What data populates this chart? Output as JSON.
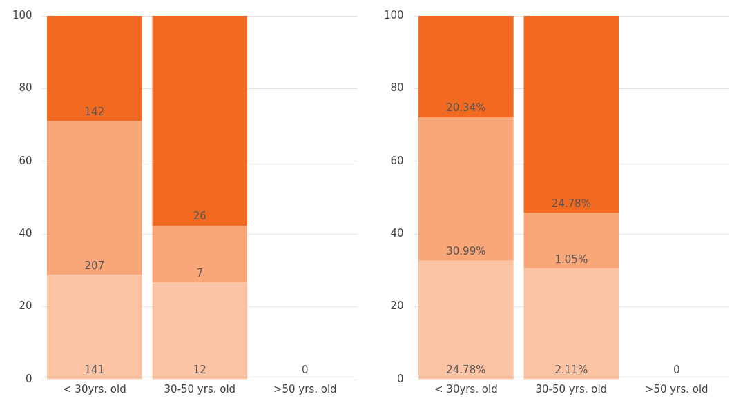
{
  "chart_data": [
    {
      "type": "bar",
      "stacked": true,
      "categories": [
        "< 30yrs. old",
        "30-50 yrs. old",
        ">50 yrs. old"
      ],
      "ylim": [
        0,
        100
      ],
      "yticks": [
        0,
        20,
        40,
        60,
        80,
        100
      ],
      "grid": "y",
      "series": [
        {
          "color": "#fbc3a3",
          "values": [
            28.8,
            26.7,
            0
          ]
        },
        {
          "color": "#f9a678",
          "values": [
            42.2,
            15.6,
            0
          ]
        },
        {
          "color": "#f26a22",
          "values": [
            29.0,
            57.7,
            0
          ]
        }
      ],
      "annotations": [
        {
          "text": "141",
          "x": "< 30yrs. old",
          "y": 0
        },
        {
          "text": "207",
          "x": "< 30yrs. old",
          "y": 28.8
        },
        {
          "text": "142",
          "x": "< 30yrs. old",
          "y": 71.0
        },
        {
          "text": "12",
          "x": "30-50 yrs. old",
          "y": 0
        },
        {
          "text": "7",
          "x": "30-50 yrs. old",
          "y": 26.7
        },
        {
          "text": "26",
          "x": "30-50 yrs. old",
          "y": 42.3
        },
        {
          "text": "0",
          "x": ">50 yrs. old",
          "y": 0
        }
      ]
    },
    {
      "type": "bar",
      "stacked": true,
      "categories": [
        "< 30yrs. old",
        "30-50 yrs. old",
        ">50 yrs. old"
      ],
      "ylim": [
        0,
        100
      ],
      "yticks": [
        0,
        20,
        40,
        60,
        80,
        100
      ],
      "grid": "y",
      "series": [
        {
          "color": "#fbc3a3",
          "values": [
            32.7,
            30.5,
            0
          ]
        },
        {
          "color": "#f9a678",
          "values": [
            39.4,
            15.3,
            0
          ]
        },
        {
          "color": "#f26a22",
          "values": [
            27.9,
            54.2,
            0
          ]
        }
      ],
      "annotations": [
        {
          "text": "24.78%",
          "x": "< 30yrs. old",
          "y": 0
        },
        {
          "text": "30.99%",
          "x": "< 30yrs. old",
          "y": 32.7
        },
        {
          "text": "20.34%",
          "x": "< 30yrs. old",
          "y": 72.1
        },
        {
          "text": "2.11%",
          "x": "30-50 yrs. old",
          "y": 0
        },
        {
          "text": "1.05%",
          "x": "30-50 yrs. old",
          "y": 30.5
        },
        {
          "text": "24.78%",
          "x": "30-50 yrs. old",
          "y": 45.8
        },
        {
          "text": "0",
          "x": ">50 yrs. old",
          "y": 0
        }
      ]
    }
  ]
}
